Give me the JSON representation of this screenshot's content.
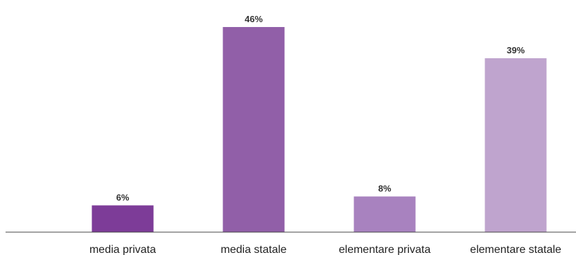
{
  "chart_data": {
    "type": "bar",
    "categories": [
      "media privata",
      "media statale",
      "elementare privata",
      "elementare statale"
    ],
    "values": [
      6,
      46,
      8,
      39
    ],
    "value_labels": [
      "6%",
      "46%",
      "8%",
      "39%"
    ],
    "unit": "%",
    "title": "",
    "xlabel": "",
    "ylabel": "",
    "ylim": [
      0,
      50
    ],
    "grid": false,
    "legend": "none",
    "colors": [
      "#7d3c98",
      "#915fa8",
      "#a882bf",
      "#bfa4ce"
    ],
    "axis_color": "#444444"
  }
}
